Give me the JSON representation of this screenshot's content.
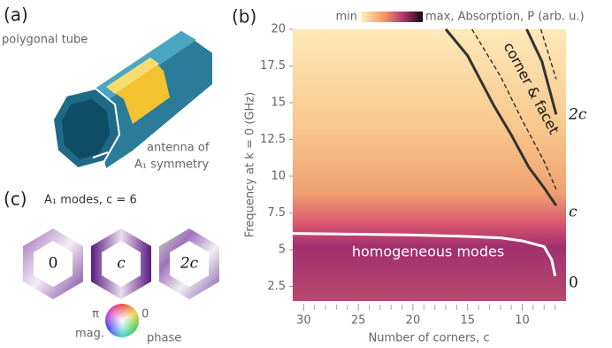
{
  "panel_a": {
    "label": "(a)",
    "tube_label": "polygonal tube",
    "antenna_label": "antenna of",
    "antenna_symmetry": "A₁ symmetry"
  },
  "panel_c": {
    "label": "(c)",
    "title": "A₁ modes, c = 6",
    "modes": [
      "0",
      "c",
      "2c"
    ],
    "wheel": {
      "top": "π",
      "right": "0",
      "left": "mag.",
      "bottom": "phase"
    }
  },
  "chart_data": {
    "type": "heatmap",
    "panel_label": "(b)",
    "colorbar": {
      "min_label": "min",
      "max_label": "max, Absorption, P (arb. u.)"
    },
    "xlabel": "Number of corners, c",
    "ylabel": "Frequency at k = 0 (GHz)",
    "xlim": [
      31,
      6
    ],
    "ylim": [
      1.5,
      20
    ],
    "xticks": [
      30,
      25,
      20,
      15,
      10
    ],
    "xminorticks": [
      29,
      28,
      27,
      26,
      24,
      23,
      22,
      21,
      19,
      18,
      17,
      16,
      14,
      13,
      12,
      11,
      9,
      8,
      7
    ],
    "yticks": [
      2.5,
      5,
      7.5,
      10,
      12.5,
      15,
      17.5,
      20
    ],
    "series": [
      {
        "color": "#ffffff",
        "style": "solid",
        "x": [
          31,
          25,
          20,
          15,
          12,
          10,
          8,
          7.3,
          7
        ],
        "values": [
          6.1,
          6.05,
          6.0,
          5.9,
          5.8,
          5.6,
          5.2,
          4.3,
          3.2
        ]
      },
      {
        "color": "#333333",
        "style": "solid",
        "x": [
          17,
          15,
          12.6,
          11,
          9.4,
          8,
          6.9
        ],
        "values": [
          20,
          18.2,
          14.8,
          12.8,
          10.6,
          9.2,
          8.0
        ]
      },
      {
        "color": "#333333",
        "style": "solid",
        "x": [
          9.6,
          8.2,
          6.9
        ],
        "values": [
          20,
          17.8,
          14.2
        ]
      },
      {
        "color": "#222222",
        "style": "dashed",
        "x": [
          14.6,
          12,
          10,
          8,
          6.9
        ],
        "values": [
          20,
          16.8,
          13.8,
          11,
          9.1
        ]
      },
      {
        "color": "#222222",
        "style": "dashed",
        "x": [
          8.3,
          6.9
        ],
        "values": [
          20,
          16.6
        ]
      }
    ],
    "annotations": [
      "corner & facet",
      "homogeneous modes"
    ],
    "mode_labels": [
      "2c",
      "c",
      "0"
    ]
  }
}
